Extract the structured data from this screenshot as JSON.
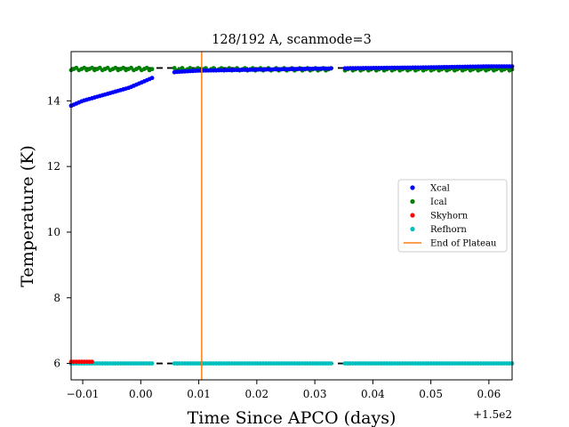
{
  "chart_data": {
    "type": "scatter",
    "title": "128/192 A, scanmode=3",
    "xlabel": "Time Since APCO (days)",
    "ylabel": "Temperature (K)",
    "x_offset_label": "+1.5e2",
    "xlim": [
      149.988,
      150.064
    ],
    "ylim": [
      5.5,
      15.5
    ],
    "xticks": [
      149.99,
      150.0,
      150.01,
      150.02,
      150.03,
      150.04,
      150.05,
      150.06
    ],
    "xtick_labels": [
      "−0.01",
      "0.00",
      "0.01",
      "0.02",
      "0.03",
      "0.04",
      "0.05",
      "0.06"
    ],
    "yticks": [
      6,
      8,
      10,
      12,
      14
    ],
    "ytick_labels": [
      "6",
      "8",
      "10",
      "12",
      "14"
    ],
    "grid": false,
    "legend_position": "center-right",
    "reference_lines": [
      {
        "y": 15.0,
        "style": "dashed",
        "color": "#000000"
      },
      {
        "y": 6.0,
        "style": "dashed",
        "color": "#000000"
      }
    ],
    "vertical_line": {
      "name": "End of Plateau",
      "x": 150.0105,
      "color": "#ff7f0e"
    },
    "segments": [
      [
        149.988,
        150.0023
      ],
      [
        150.0058,
        150.0332
      ],
      [
        150.0352,
        150.064
      ]
    ],
    "series": [
      {
        "name": "Xcal",
        "color": "#0000ff",
        "marker": "dot",
        "points": [
          [
            149.988,
            13.85
          ],
          [
            149.99,
            14.0
          ],
          [
            149.992,
            14.1
          ],
          [
            149.994,
            14.2
          ],
          [
            149.996,
            14.3
          ],
          [
            149.998,
            14.4
          ],
          [
            150.0,
            14.55
          ],
          [
            150.002,
            14.7
          ],
          [
            150.006,
            14.88
          ],
          [
            150.01,
            14.92
          ],
          [
            150.02,
            14.95
          ],
          [
            150.03,
            14.98
          ],
          [
            150.04,
            15.0
          ],
          [
            150.05,
            15.02
          ],
          [
            150.06,
            15.05
          ]
        ]
      },
      {
        "name": "Ical",
        "color": "#008000",
        "marker": "dot",
        "points": [
          [
            149.988,
            14.97
          ],
          [
            150.0,
            14.97
          ],
          [
            150.01,
            14.96
          ],
          [
            150.02,
            14.96
          ],
          [
            150.03,
            14.96
          ],
          [
            150.04,
            14.96
          ],
          [
            150.05,
            14.96
          ],
          [
            150.06,
            14.96
          ]
        ]
      },
      {
        "name": "Skyhorn",
        "color": "#ff0000",
        "marker": "dot",
        "points": [
          [
            149.988,
            6.05
          ],
          [
            149.992,
            6.05
          ]
        ]
      },
      {
        "name": "Refhorn",
        "color": "#00bfbf",
        "marker": "dot",
        "points": [
          [
            149.988,
            6.0
          ],
          [
            150.0,
            6.0
          ],
          [
            150.01,
            6.0
          ],
          [
            150.02,
            6.0
          ],
          [
            150.03,
            6.0
          ],
          [
            150.04,
            6.0
          ],
          [
            150.05,
            6.0
          ],
          [
            150.06,
            6.0
          ]
        ]
      }
    ]
  }
}
